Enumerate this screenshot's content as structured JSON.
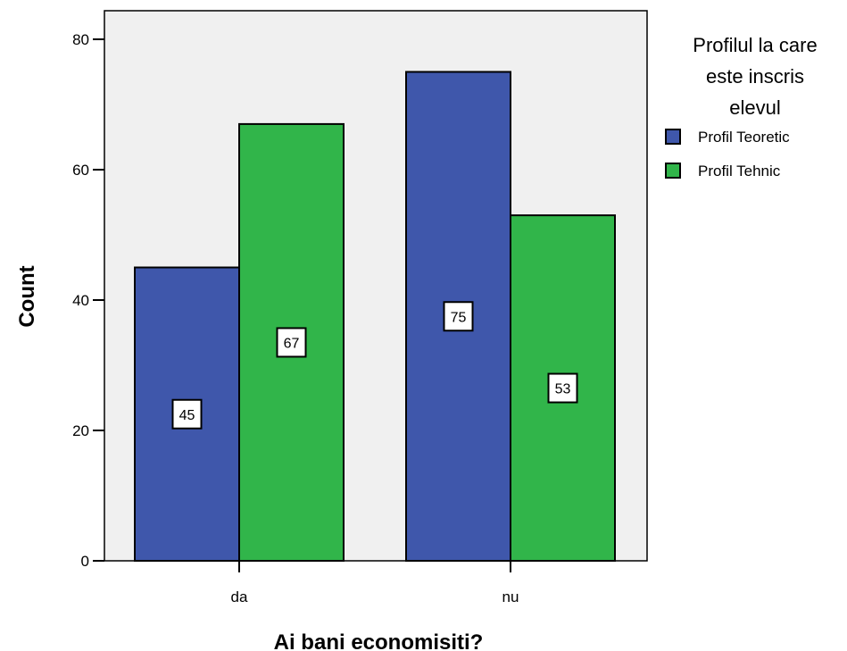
{
  "chart_data": {
    "type": "bar",
    "title": "",
    "xlabel": "Ai bani economisiti?",
    "ylabel": "Count",
    "categories": [
      "da",
      "nu"
    ],
    "series": [
      {
        "name": "Profil Teoretic",
        "color": "#3f57ab",
        "values": [
          45,
          75
        ]
      },
      {
        "name": "Profil Tehnic",
        "color": "#31b54a",
        "values": [
          67,
          53
        ]
      }
    ],
    "ylim": [
      0,
      80
    ],
    "yticks": [
      0,
      20,
      40,
      60,
      80
    ],
    "legend": {
      "title_lines": [
        "Profilul la care",
        "este inscris",
        "elevul"
      ],
      "placement": "right"
    },
    "plot_background": "#f0f0f0",
    "grid": false,
    "data_labels": true
  }
}
